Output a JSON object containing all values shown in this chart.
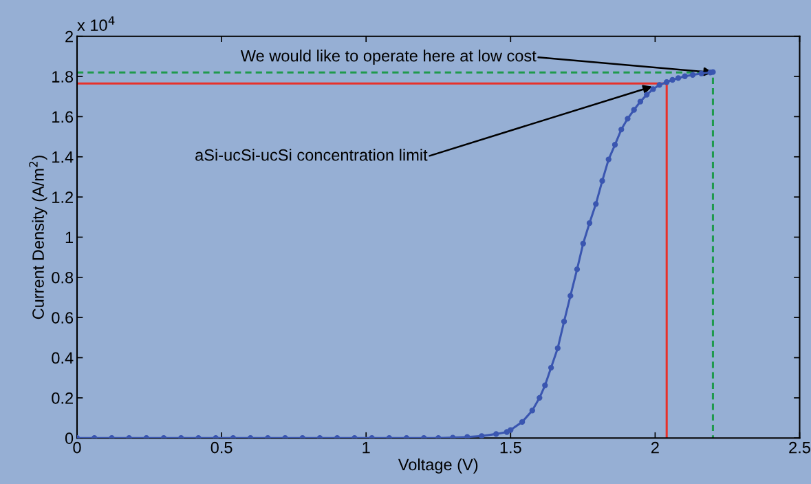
{
  "chart_data": {
    "type": "line",
    "xlabel": "Voltage (V)",
    "ylabel": "Current Density (A/m$^{2}$)",
    "xlim": [
      0,
      2.5
    ],
    "xticks": [
      0,
      0.5,
      1,
      1.5,
      2,
      2.5
    ],
    "ylim": [
      0,
      2
    ],
    "yticks": [
      0,
      0.2,
      0.4,
      0.6,
      0.8,
      1,
      1.2,
      1.4,
      1.6,
      1.8,
      2
    ],
    "grid": false,
    "legend": false,
    "series": [
      {
        "color": "#e8312a",
        "line_style": "solid",
        "marker": "none",
        "x": [
          0,
          2.04,
          2.04
        ],
        "values": [
          1.765,
          1.765,
          0
        ]
      },
      {
        "color": "#1f9a4c",
        "line_style": "dashed",
        "marker": "none",
        "x": [
          0,
          2.2,
          2.2
        ],
        "values": [
          1.82,
          1.82,
          0
        ]
      },
      {
        "color": "#3a56b0",
        "line_style": "solid",
        "marker": "circle",
        "x": [
          0,
          0.06,
          0.12,
          0.18,
          0.24,
          0.3,
          0.36,
          0.42,
          0.48,
          0.54,
          0.6,
          0.66,
          0.72,
          0.78,
          0.84,
          0.9,
          0.96,
          1.02,
          1.08,
          1.14,
          1.2,
          1.25,
          1.3,
          1.35,
          1.4,
          1.45,
          1.487,
          1.5,
          1.54,
          1.575,
          1.6,
          1.619,
          1.64,
          1.663,
          1.685,
          1.707,
          1.73,
          1.751,
          1.773,
          1.795,
          1.817,
          1.839,
          1.861,
          1.883,
          1.905,
          1.927,
          1.949,
          1.971,
          1.993,
          2.015,
          2.04,
          2.06,
          2.08,
          2.103,
          2.13,
          2.16,
          2.191,
          2.2
        ],
        "values": [
          0,
          0,
          0,
          0,
          0,
          0,
          0,
          0,
          0,
          0,
          0,
          0,
          0,
          0,
          0,
          0,
          0,
          0,
          0,
          0,
          0,
          0,
          0.002,
          0.005,
          0.01,
          0.02,
          0.03,
          0.04,
          0.08,
          0.137,
          0.2,
          0.262,
          0.35,
          0.447,
          0.58,
          0.708,
          0.84,
          0.968,
          1.07,
          1.165,
          1.28,
          1.387,
          1.46,
          1.536,
          1.59,
          1.634,
          1.675,
          1.709,
          1.737,
          1.758,
          1.772,
          1.783,
          1.792,
          1.801,
          1.808,
          1.815,
          1.82,
          1.822
        ]
      }
    ],
    "annotations": [
      "x 10$^{4}$",
      {
        "text": "We would like to operate here at low cost",
        "x": 2.2,
        "y": 1.82
      },
      {
        "text": "aSi-ucSi-ucSi concentration limit",
        "x": 1.99,
        "y": 1.75
      }
    ]
  }
}
